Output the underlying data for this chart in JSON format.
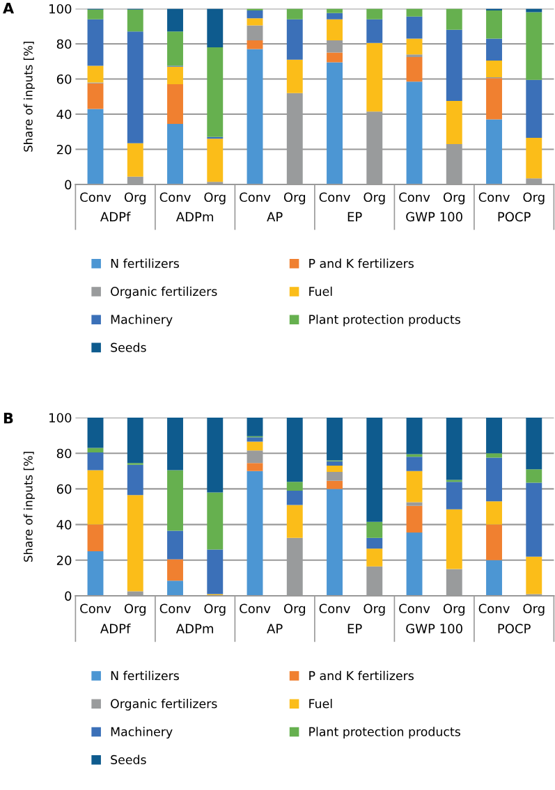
{
  "chart_data": [
    {
      "type": "bar",
      "title": "A",
      "ylabel": "Share of inputs [%]",
      "stacked": true,
      "categories": [
        "Conv",
        "Org",
        "Conv",
        "Org",
        "Conv",
        "Org",
        "Conv",
        "Org",
        "Conv",
        "Org",
        "Conv",
        "Org"
      ],
      "annotations": [
        "ADPf",
        "ADPm",
        "AP",
        "EP",
        "GWP 100",
        "POCP"
      ],
      "ylim": [
        0,
        100
      ],
      "yticks": [
        0,
        20,
        40,
        60,
        80,
        100
      ],
      "grid": "y",
      "legend": "bottom",
      "series": [
        {
          "name": "N fertilizers",
          "color": "#4c96d3",
          "values": [
            43,
            0,
            34.5,
            0,
            77,
            0,
            69.5,
            0,
            58.5,
            0,
            37,
            0
          ]
        },
        {
          "name": "P and K fertilizers",
          "color": "#f08030",
          "values": [
            14.5,
            0,
            22.5,
            0,
            5,
            0,
            5.5,
            0,
            14,
            0,
            23.5,
            0
          ]
        },
        {
          "name": "Organic fertilizers",
          "color": "#999b9c",
          "values": [
            0.5,
            4.5,
            0,
            1.5,
            8.5,
            52,
            7,
            41.5,
            1.5,
            23,
            0.5,
            3.5
          ]
        },
        {
          "name": "Fuel",
          "color": "#fbbd19",
          "values": [
            9.5,
            19,
            10,
            24.5,
            4,
            19,
            12,
            39,
            9,
            24.5,
            9.5,
            23
          ]
        },
        {
          "name": "Machinery",
          "color": "#3b70b8",
          "values": [
            26.5,
            63.5,
            0.5,
            1,
            4.5,
            23,
            3.5,
            13.5,
            12.5,
            40.5,
            12.5,
            33
          ]
        },
        {
          "name": "Plant protection products",
          "color": "#66b04f",
          "values": [
            5.5,
            12.5,
            19.5,
            51,
            1,
            6,
            2.5,
            6,
            4.5,
            12,
            16,
            38.5
          ]
        },
        {
          "name": "Seeds",
          "color": "#0e5b8e",
          "values": [
            0.5,
            0.5,
            13,
            22,
            0,
            0,
            0,
            0,
            0,
            0,
            1,
            2
          ]
        }
      ]
    },
    {
      "type": "bar",
      "title": "B",
      "ylabel": "Share of inputs [%]",
      "stacked": true,
      "categories": [
        "Conv",
        "Org",
        "Conv",
        "Org",
        "Conv",
        "Org",
        "Conv",
        "Org",
        "Conv",
        "Org",
        "Conv",
        "Org"
      ],
      "annotations": [
        "ADPf",
        "ADPm",
        "AP",
        "EP",
        "GWP 100",
        "POCP"
      ],
      "ylim": [
        0,
        100
      ],
      "yticks": [
        0,
        20,
        40,
        60,
        80,
        100
      ],
      "grid": "y",
      "legend": "bottom",
      "series": [
        {
          "name": "N fertilizers",
          "color": "#4c96d3",
          "values": [
            25,
            0,
            8.5,
            0,
            70,
            0,
            60,
            0,
            35.5,
            0,
            20,
            0
          ]
        },
        {
          "name": "P and K fertilizers",
          "color": "#f08030",
          "values": [
            15,
            0,
            12,
            0,
            4.5,
            0,
            4.5,
            0,
            15,
            0,
            20,
            0
          ]
        },
        {
          "name": "Organic fertilizers",
          "color": "#999b9c",
          "values": [
            0,
            2.5,
            0,
            0,
            7,
            32.5,
            5,
            16.5,
            2,
            15,
            0,
            1
          ]
        },
        {
          "name": "Fuel",
          "color": "#fbbd19",
          "values": [
            30.5,
            54,
            0,
            1,
            5,
            18.5,
            3.5,
            10,
            17.5,
            33.5,
            13,
            21
          ]
        },
        {
          "name": "Machinery",
          "color": "#3b70b8",
          "values": [
            10,
            17,
            16,
            25,
            2.5,
            8,
            2.5,
            6,
            8,
            15.5,
            24.5,
            41.5
          ]
        },
        {
          "name": "Plant protection products",
          "color": "#66b04f",
          "values": [
            2.5,
            1,
            34,
            32,
            0.5,
            5,
            0.5,
            9,
            1.5,
            1,
            2.5,
            7.5
          ]
        },
        {
          "name": "Seeds",
          "color": "#0e5b8e",
          "values": [
            17,
            25.5,
            29.5,
            42,
            10.5,
            36,
            24,
            58.5,
            20.5,
            35,
            20,
            29
          ]
        }
      ]
    }
  ]
}
